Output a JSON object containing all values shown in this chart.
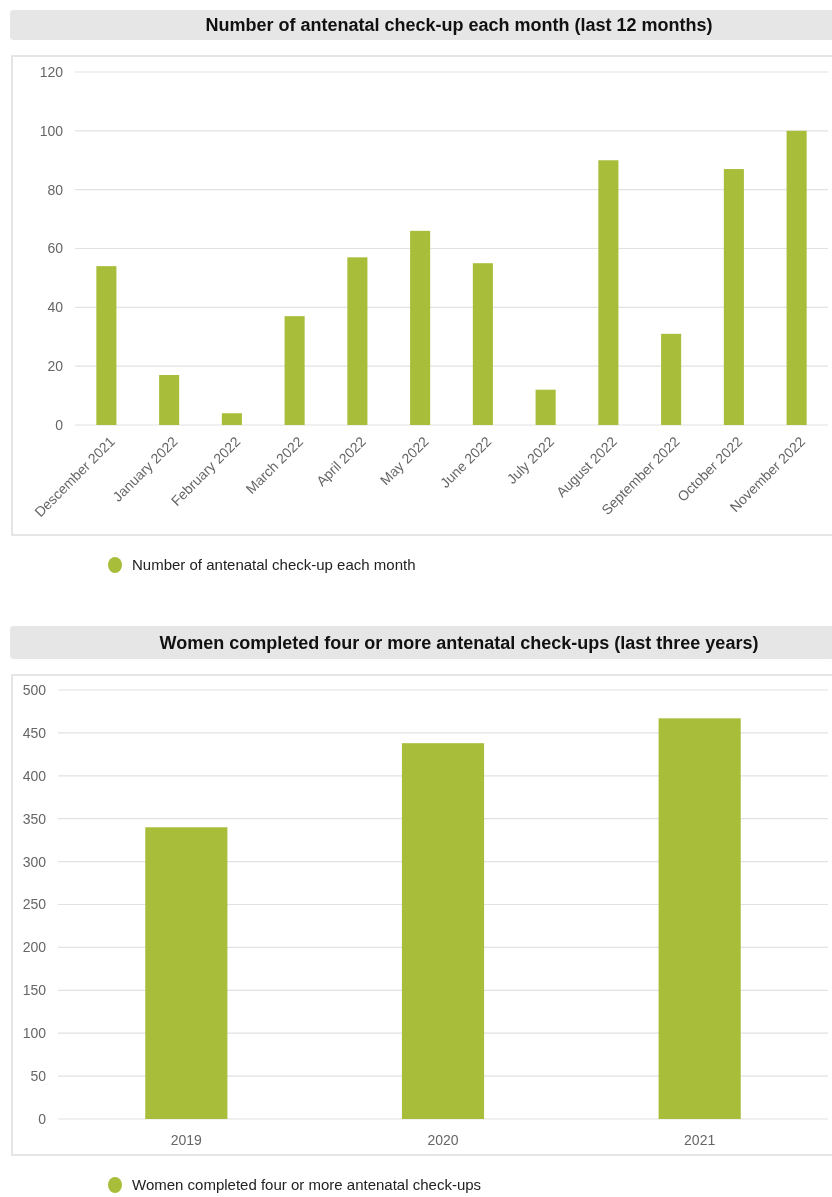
{
  "chart_data": [
    {
      "type": "bar",
      "title": "Number of antenatal check-up each month (last 12 months)",
      "categories": [
        "Descember 2021",
        "January 2022",
        "February 2022",
        "March 2022",
        "April 2022",
        "May 2022",
        "June 2022",
        "July 2022",
        "August 2022",
        "September 2022",
        "October 2022",
        "November 2022"
      ],
      "series": [
        {
          "name": "Number of antenatal check-up each month",
          "color": "#a8bd3a",
          "values": [
            54,
            17,
            4,
            37,
            57,
            66,
            55,
            12,
            90,
            31,
            87,
            100
          ]
        }
      ],
      "ylim": [
        0,
        120
      ],
      "yticks": [
        0,
        20,
        40,
        60,
        80,
        100,
        120
      ],
      "grid": "y",
      "legend": "bottom"
    },
    {
      "type": "bar",
      "title": "Women completed four or more antenatal check-ups (last three years)",
      "categories": [
        "2019",
        "2020",
        "2021"
      ],
      "series": [
        {
          "name": "Women completed four or more antenatal check-ups",
          "color": "#a8bd3a",
          "values": [
            340,
            438,
            467
          ]
        }
      ],
      "ylim": [
        0,
        500
      ],
      "yticks": [
        0,
        50,
        100,
        150,
        200,
        250,
        300,
        350,
        400,
        450,
        500
      ],
      "grid": "y",
      "legend": "bottom"
    }
  ]
}
